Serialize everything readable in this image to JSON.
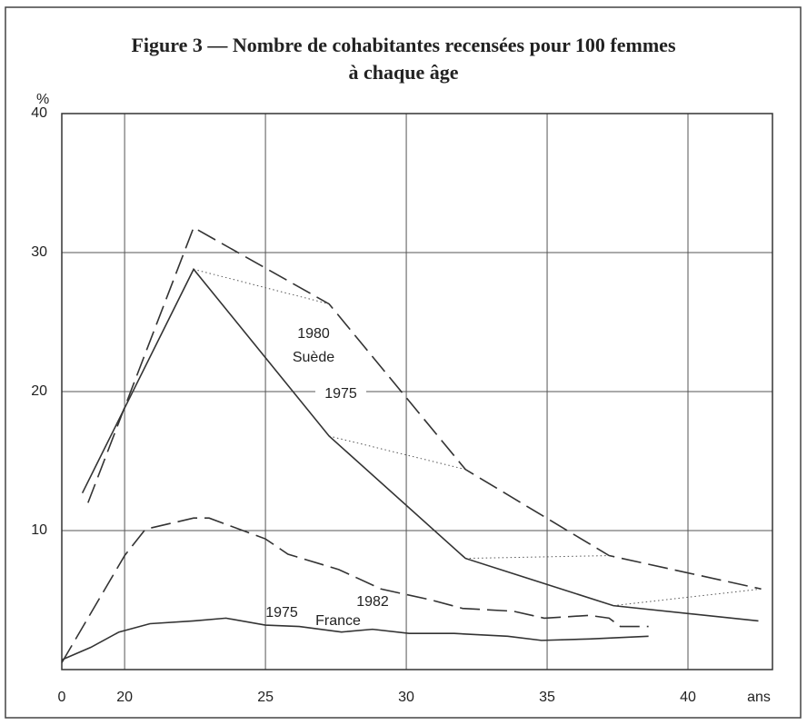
{
  "chart_data": {
    "type": "line",
    "title": "Figure 3 — Nombre de cohabitantes recensées pour 100 femmes",
    "subtitle": "à chaque âge",
    "ylabel": "%",
    "xlabel": "ans",
    "xlim": [
      17.77,
      43
    ],
    "xticks": [
      20,
      25,
      30,
      35,
      40
    ],
    "ylim": [
      0,
      40
    ],
    "yticks": [
      0,
      10,
      20,
      30,
      40
    ],
    "grid": true,
    "annotations": [
      "Suède",
      "France"
    ],
    "series": [
      {
        "name": "1975",
        "color": "#333333",
        "dash": "solid",
        "x": [
          18.5,
          22.45,
          27.26,
          32.1,
          37.35,
          42.5
        ],
        "values": [
          12.7,
          28.8,
          16.8,
          8.0,
          4.6,
          3.5
        ]
      },
      {
        "name": "1980",
        "color": "#333333",
        "dash": "dashed",
        "x": [
          18.7,
          22.45,
          27.26,
          32.1,
          37.2,
          42.6
        ],
        "values": [
          12.0,
          31.8,
          26.3,
          14.4,
          8.2,
          5.8
        ]
      },
      {
        "name": "1982",
        "color": "#333333",
        "dash": "dashed",
        "x": [
          17.77,
          20,
          20.74,
          22.45,
          23,
          25,
          25.8,
          27.6,
          29.1,
          30.9,
          32,
          33.8,
          34.9,
          36.5,
          37.2,
          37.6,
          38.6
        ],
        "values": [
          0.5,
          8.2,
          10.1,
          10.9,
          10.9,
          9.4,
          8.3,
          7.2,
          5.8,
          5.0,
          4.4,
          4.2,
          3.7,
          3.9,
          3.7,
          3.1,
          3.1
        ]
      },
      {
        "name": "1975",
        "color": "#333333",
        "dash": "solid",
        "x": [
          17.77,
          18.8,
          19.8,
          20.9,
          22.45,
          23.6,
          25,
          26.2,
          27.7,
          28.8,
          30.1,
          31.7,
          33.6,
          34.8,
          36.5,
          38.6
        ],
        "values": [
          0.7,
          1.6,
          2.7,
          3.3,
          3.5,
          3.7,
          3.2,
          3.1,
          2.7,
          2.9,
          2.6,
          2.6,
          2.4,
          2.1,
          2.2,
          2.4
        ]
      }
    ]
  }
}
